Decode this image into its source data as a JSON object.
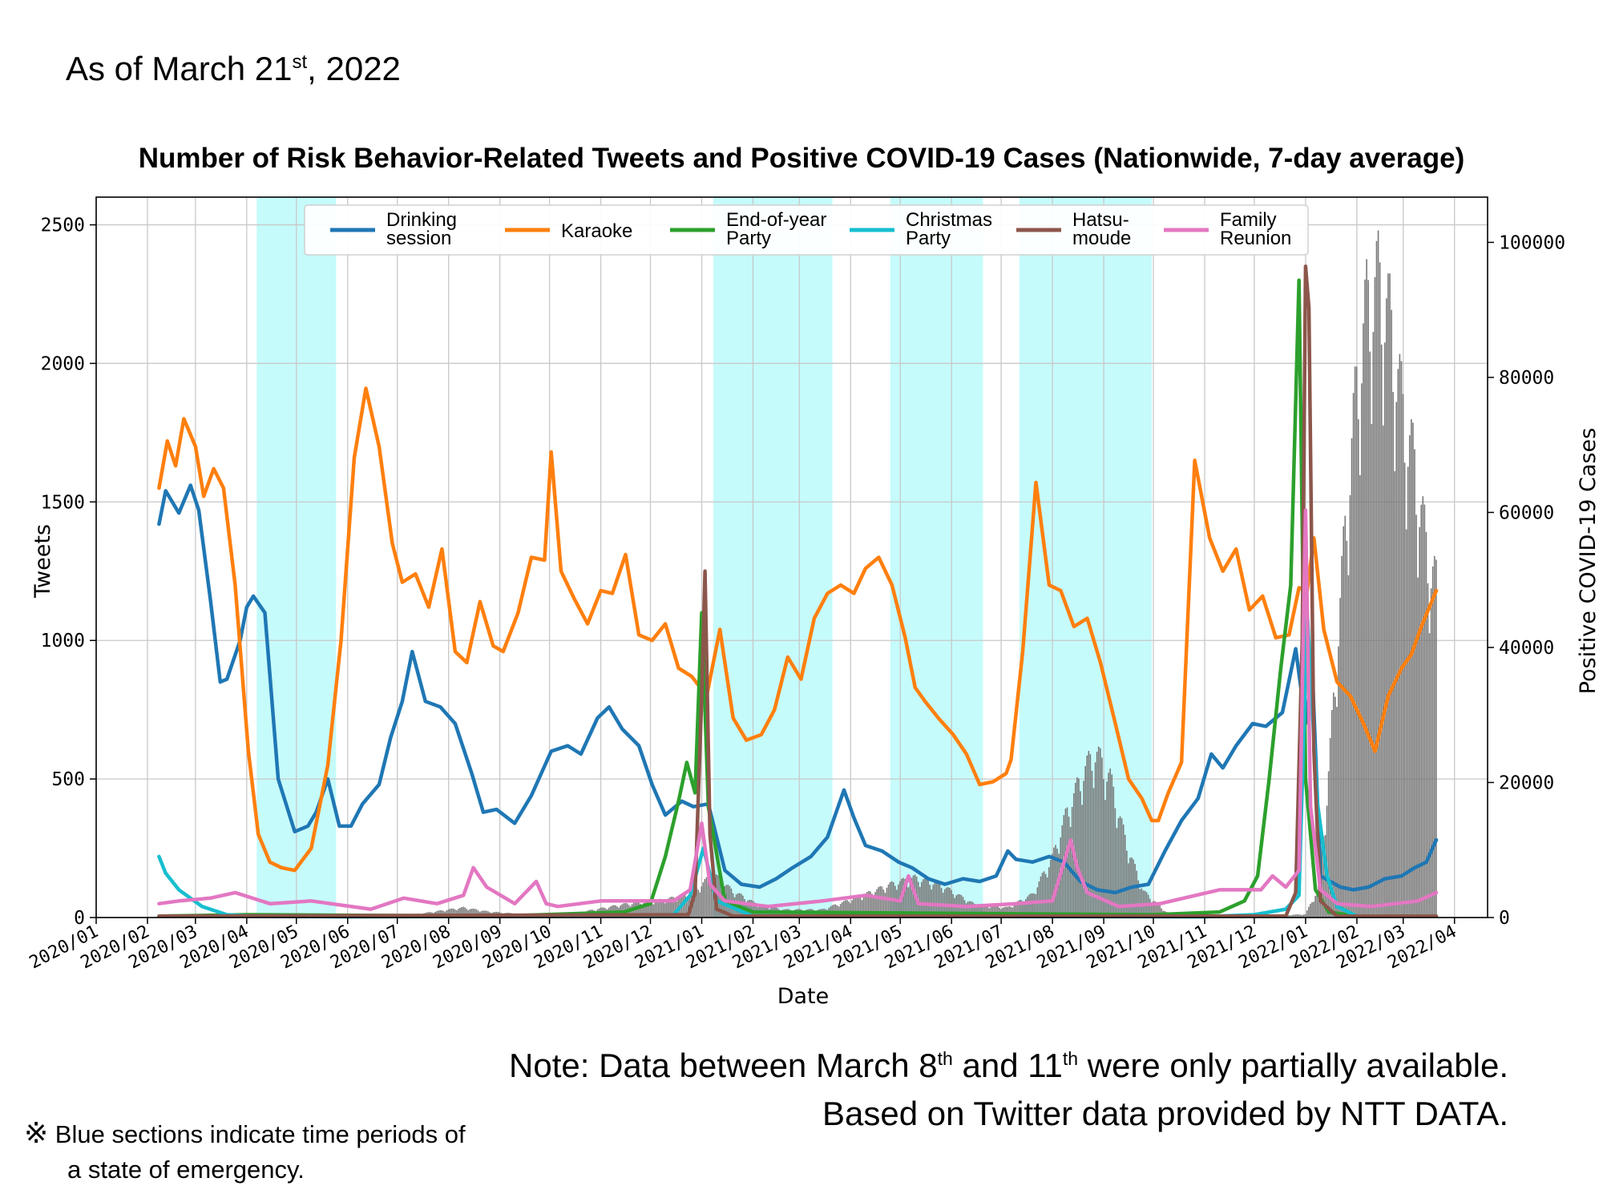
{
  "header": {
    "asof_prefix": "As of March 21",
    "asof_sup": "st",
    "asof_suffix": ", 2022"
  },
  "chart_data": {
    "type": "line",
    "title": "Number of Risk Behavior-Related Tweets and Positive COVID-19 Cases (Nationwide, 7-day average)",
    "xlabel": "Date",
    "ylabel": "Tweets",
    "ylabel_right": "Positive COVID-19 Cases",
    "ylim": [
      0,
      2600
    ],
    "ylim_right": [
      0,
      106700
    ],
    "x_range": [
      "2020-01-01",
      "2022-04-21"
    ],
    "grid": true,
    "legend_position": "top-center",
    "y_ticks": [
      0,
      500,
      1000,
      1500,
      2000,
      2500
    ],
    "y_tick_labels": [
      "0",
      "500",
      "1000",
      "1500",
      "2000",
      "2500"
    ],
    "y_right_ticks": [
      0,
      20000,
      40000,
      60000,
      80000,
      100000
    ],
    "y_right_tick_labels": [
      "0",
      "20000",
      "40000",
      "60000",
      "80000",
      "100000"
    ],
    "x_ticks": [
      "2020-01-01",
      "2020-02-01",
      "2020-03-01",
      "2020-04-01",
      "2020-05-01",
      "2020-06-01",
      "2020-07-01",
      "2020-08-01",
      "2020-09-01",
      "2020-10-01",
      "2020-11-01",
      "2020-12-01",
      "2021-01-01",
      "2021-02-01",
      "2021-03-01",
      "2021-04-01",
      "2021-05-01",
      "2021-06-01",
      "2021-07-01",
      "2021-08-01",
      "2021-09-01",
      "2021-10-01",
      "2021-11-01",
      "2021-12-01",
      "2022-01-01",
      "2022-02-01",
      "2022-03-01",
      "2022-04-01"
    ],
    "x_tick_labels": [
      "2020/01",
      "2020/02",
      "2020/03",
      "2020/04",
      "2020/05",
      "2020/06",
      "2020/07",
      "2020/08",
      "2020/09",
      "2020/10",
      "2020/11",
      "2020/12",
      "2021/01",
      "2021/02",
      "2021/03",
      "2021/04",
      "2021/05",
      "2021/06",
      "2021/07",
      "2021/08",
      "2021/09",
      "2021/10",
      "2021/11",
      "2021/12",
      "2022/01",
      "2022/02",
      "2022/03",
      "2022/04"
    ],
    "emergency_periods": [
      [
        "2020-04-07",
        "2020-05-25"
      ],
      [
        "2021-01-08",
        "2021-03-21"
      ],
      [
        "2021-04-25",
        "2021-06-20"
      ],
      [
        "2021-07-12",
        "2021-09-30"
      ]
    ],
    "series": [
      {
        "name": "Drinking session",
        "color": "#1f77b4",
        "x": [
          "2020-02-08",
          "2020-02-12",
          "2020-02-20",
          "2020-02-27",
          "2020-03-03",
          "2020-03-10",
          "2020-03-16",
          "2020-03-20",
          "2020-03-28",
          "2020-04-01",
          "2020-04-05",
          "2020-04-12",
          "2020-04-20",
          "2020-04-30",
          "2020-05-08",
          "2020-05-13",
          "2020-05-20",
          "2020-05-27",
          "2020-06-03",
          "2020-06-10",
          "2020-06-20",
          "2020-06-27",
          "2020-07-04",
          "2020-07-10",
          "2020-07-18",
          "2020-07-27",
          "2020-08-05",
          "2020-08-15",
          "2020-08-22",
          "2020-08-30",
          "2020-09-10",
          "2020-09-20",
          "2020-10-02",
          "2020-10-12",
          "2020-10-20",
          "2020-10-30",
          "2020-11-06",
          "2020-11-14",
          "2020-11-24",
          "2020-12-02",
          "2020-12-10",
          "2020-12-20",
          "2020-12-27",
          "2021-01-05",
          "2021-01-15",
          "2021-01-25",
          "2021-02-05",
          "2021-02-15",
          "2021-02-25",
          "2021-03-08",
          "2021-03-18",
          "2021-03-28",
          "2021-04-03",
          "2021-04-10",
          "2021-04-20",
          "2021-04-30",
          "2021-05-08",
          "2021-05-18",
          "2021-05-28",
          "2021-06-08",
          "2021-06-18",
          "2021-06-28",
          "2021-07-05",
          "2021-07-10",
          "2021-07-20",
          "2021-07-30",
          "2021-08-08",
          "2021-08-18",
          "2021-08-28",
          "2021-09-08",
          "2021-09-18",
          "2021-09-28",
          "2021-10-08",
          "2021-10-18",
          "2021-10-28",
          "2021-11-05",
          "2021-11-12",
          "2021-11-20",
          "2021-11-30",
          "2021-12-08",
          "2021-12-18",
          "2021-12-26",
          "2022-01-01",
          "2022-01-05",
          "2022-01-10",
          "2022-01-16",
          "2022-01-22",
          "2022-01-30",
          "2022-02-08",
          "2022-02-18",
          "2022-02-28",
          "2022-03-08",
          "2022-03-15",
          "2022-03-21"
        ],
        "values": [
          1420,
          1540,
          1460,
          1560,
          1470,
          1150,
          850,
          860,
          1000,
          1120,
          1160,
          1100,
          500,
          310,
          330,
          380,
          500,
          330,
          330,
          410,
          480,
          650,
          780,
          960,
          780,
          760,
          700,
          520,
          380,
          390,
          340,
          440,
          600,
          620,
          590,
          720,
          760,
          680,
          620,
          480,
          370,
          420,
          400,
          410,
          170,
          120,
          110,
          140,
          180,
          220,
          290,
          460,
          360,
          260,
          240,
          200,
          180,
          140,
          120,
          140,
          130,
          150,
          240,
          210,
          200,
          220,
          200,
          130,
          100,
          90,
          110,
          120,
          240,
          350,
          430,
          590,
          540,
          620,
          700,
          690,
          740,
          970,
          700,
          900,
          150,
          130,
          110,
          100,
          110,
          140,
          150,
          180,
          200,
          280
        ]
      },
      {
        "name": "Karaoke",
        "color": "#ff7f0e",
        "x": [
          "2020-02-08",
          "2020-02-13",
          "2020-02-18",
          "2020-02-23",
          "2020-03-01",
          "2020-03-06",
          "2020-03-12",
          "2020-03-18",
          "2020-03-25",
          "2020-04-02",
          "2020-04-08",
          "2020-04-15",
          "2020-04-22",
          "2020-04-30",
          "2020-05-10",
          "2020-05-20",
          "2020-05-28",
          "2020-06-05",
          "2020-06-12",
          "2020-06-20",
          "2020-06-28",
          "2020-07-04",
          "2020-07-12",
          "2020-07-20",
          "2020-07-28",
          "2020-08-05",
          "2020-08-12",
          "2020-08-20",
          "2020-08-28",
          "2020-09-03",
          "2020-09-12",
          "2020-09-20",
          "2020-09-28",
          "2020-10-02",
          "2020-10-08",
          "2020-10-16",
          "2020-10-24",
          "2020-11-01",
          "2020-11-08",
          "2020-11-16",
          "2020-11-24",
          "2020-12-02",
          "2020-12-10",
          "2020-12-18",
          "2020-12-26",
          "2021-01-04",
          "2021-01-12",
          "2021-01-20",
          "2021-01-28",
          "2021-02-06",
          "2021-02-14",
          "2021-02-22",
          "2021-03-02",
          "2021-03-10",
          "2021-03-18",
          "2021-03-26",
          "2021-04-03",
          "2021-04-10",
          "2021-04-18",
          "2021-04-26",
          "2021-05-04",
          "2021-05-10",
          "2021-05-16",
          "2021-05-24",
          "2021-06-02",
          "2021-06-10",
          "2021-06-18",
          "2021-06-26",
          "2021-07-04",
          "2021-07-07",
          "2021-07-14",
          "2021-07-22",
          "2021-07-30",
          "2021-08-06",
          "2021-08-14",
          "2021-08-22",
          "2021-08-30",
          "2021-09-08",
          "2021-09-16",
          "2021-09-24",
          "2021-09-30",
          "2021-10-04",
          "2021-10-10",
          "2021-10-18",
          "2021-10-26",
          "2021-11-04",
          "2021-11-12",
          "2021-11-20",
          "2021-11-28",
          "2021-12-06",
          "2021-12-14",
          "2021-12-22",
          "2021-12-28",
          "2022-01-02",
          "2022-01-06",
          "2022-01-12",
          "2022-01-20",
          "2022-01-28",
          "2022-02-05",
          "2022-02-12",
          "2022-02-20",
          "2022-02-28",
          "2022-03-06",
          "2022-03-12",
          "2022-03-21"
        ],
        "values": [
          1550,
          1720,
          1630,
          1800,
          1700,
          1520,
          1620,
          1550,
          1200,
          600,
          300,
          200,
          180,
          170,
          250,
          550,
          1000,
          1660,
          1910,
          1700,
          1350,
          1210,
          1240,
          1120,
          1330,
          960,
          920,
          1140,
          980,
          960,
          1100,
          1300,
          1290,
          1680,
          1250,
          1150,
          1060,
          1180,
          1170,
          1310,
          1020,
          1000,
          1060,
          900,
          870,
          800,
          1040,
          720,
          640,
          660,
          750,
          940,
          860,
          1080,
          1170,
          1200,
          1170,
          1260,
          1300,
          1200,
          1010,
          830,
          780,
          720,
          660,
          590,
          480,
          490,
          520,
          570,
          960,
          1570,
          1200,
          1180,
          1050,
          1080,
          920,
          700,
          500,
          430,
          350,
          350,
          450,
          560,
          1650,
          1370,
          1250,
          1330,
          1110,
          1160,
          1010,
          1020,
          1190,
          1180,
          1370,
          1040,
          850,
          800,
          700,
          600,
          800,
          900,
          950,
          1050,
          1180
        ]
      },
      {
        "name": "End-of-year Party",
        "color": "#2ca02c",
        "x": [
          "2020-02-08",
          "2020-04-01",
          "2020-09-01",
          "2020-11-15",
          "2020-12-01",
          "2020-12-10",
          "2020-12-18",
          "2020-12-23",
          "2020-12-28",
          "2021-01-01",
          "2021-01-05",
          "2021-01-15",
          "2021-02-01",
          "2021-10-01",
          "2021-11-10",
          "2021-11-25",
          "2021-12-03",
          "2021-12-10",
          "2021-12-17",
          "2021-12-23",
          "2021-12-28",
          "2022-01-01",
          "2022-01-07",
          "2022-01-15",
          "2022-02-01",
          "2022-03-21"
        ],
        "values": [
          5,
          10,
          5,
          20,
          50,
          220,
          420,
          560,
          450,
          1100,
          400,
          60,
          20,
          10,
          20,
          60,
          150,
          500,
          900,
          1200,
          2300,
          500,
          100,
          20,
          5,
          5
        ]
      },
      {
        "name": "Christmas Party",
        "color": "#17becf",
        "x": [
          "2020-02-08",
          "2020-02-12",
          "2020-02-20",
          "2020-03-05",
          "2020-03-20",
          "2020-04-05",
          "2020-06-01",
          "2020-11-15",
          "2020-12-15",
          "2020-12-25",
          "2021-01-02",
          "2021-01-10",
          "2021-02-01",
          "2021-11-01",
          "2021-12-01",
          "2021-12-20",
          "2021-12-28",
          "2022-01-02",
          "2022-01-08",
          "2022-01-14",
          "2022-01-20",
          "2022-02-01",
          "2022-03-21"
        ],
        "values": [
          220,
          160,
          100,
          40,
          10,
          5,
          3,
          5,
          10,
          80,
          250,
          60,
          5,
          3,
          10,
          30,
          80,
          1100,
          420,
          150,
          40,
          5,
          5
        ]
      },
      {
        "name": "Hatsumoude",
        "color": "#8c564b",
        "x": [
          "2020-02-08",
          "2020-12-24",
          "2020-12-28",
          "2021-01-01",
          "2021-01-03",
          "2021-01-06",
          "2021-01-10",
          "2021-01-20",
          "2021-12-20",
          "2021-12-26",
          "2021-12-30",
          "2022-01-01",
          "2022-01-03",
          "2022-01-06",
          "2022-01-10",
          "2022-01-20",
          "2022-03-21"
        ],
        "values": [
          5,
          10,
          90,
          800,
          1250,
          300,
          30,
          5,
          5,
          90,
          1000,
          2350,
          2200,
          600,
          60,
          5,
          5
        ]
      },
      {
        "name": "Family Reunion",
        "color": "#e377c2",
        "x": [
          "2020-02-08",
          "2020-02-20",
          "2020-03-10",
          "2020-03-25",
          "2020-04-15",
          "2020-05-10",
          "2020-06-15",
          "2020-07-05",
          "2020-07-25",
          "2020-08-10",
          "2020-08-16",
          "2020-08-24",
          "2020-09-10",
          "2020-09-23",
          "2020-09-29",
          "2020-10-06",
          "2020-11-01",
          "2020-12-15",
          "2020-12-25",
          "2021-01-01",
          "2021-01-06",
          "2021-01-15",
          "2021-02-10",
          "2021-03-15",
          "2021-04-10",
          "2021-05-01",
          "2021-05-06",
          "2021-05-12",
          "2021-06-10",
          "2021-07-10",
          "2021-08-01",
          "2021-08-12",
          "2021-08-16",
          "2021-08-22",
          "2021-09-10",
          "2021-10-05",
          "2021-11-10",
          "2021-12-05",
          "2021-12-12",
          "2021-12-20",
          "2021-12-28",
          "2022-01-01",
          "2022-01-04",
          "2022-01-10",
          "2022-01-20",
          "2022-02-10",
          "2022-03-10",
          "2022-03-21"
        ],
        "values": [
          50,
          60,
          70,
          90,
          50,
          60,
          30,
          70,
          50,
          80,
          180,
          110,
          50,
          130,
          50,
          40,
          60,
          60,
          100,
          340,
          120,
          60,
          40,
          60,
          80,
          60,
          150,
          50,
          40,
          50,
          60,
          280,
          180,
          90,
          40,
          50,
          100,
          100,
          150,
          110,
          170,
          1470,
          400,
          100,
          50,
          40,
          60,
          90
        ]
      }
    ],
    "cases_series": {
      "name": "Positive COVID-19 Cases",
      "color": "#777777",
      "x": [
        "2020-03-01",
        "2020-04-10",
        "2020-05-01",
        "2020-06-01",
        "2020-07-10",
        "2020-08-01",
        "2020-08-10",
        "2020-08-25",
        "2020-09-15",
        "2020-10-15",
        "2020-11-15",
        "2020-12-10",
        "2020-12-25",
        "2021-01-08",
        "2021-01-20",
        "2021-02-05",
        "2021-02-20",
        "2021-03-15",
        "2021-04-10",
        "2021-04-25",
        "2021-05-10",
        "2021-05-25",
        "2021-06-15",
        "2021-07-05",
        "2021-07-20",
        "2021-08-01",
        "2021-08-10",
        "2021-08-20",
        "2021-08-27",
        "2021-09-05",
        "2021-09-15",
        "2021-09-25",
        "2021-10-10",
        "2021-11-01",
        "2021-12-01",
        "2022-01-01",
        "2022-01-08",
        "2022-01-14",
        "2022-01-20",
        "2022-01-26",
        "2022-02-01",
        "2022-02-07",
        "2022-02-14",
        "2022-02-21",
        "2022-03-01",
        "2022-03-08",
        "2022-03-15",
        "2022-03-21"
      ],
      "values": [
        50,
        500,
        200,
        50,
        400,
        1200,
        1500,
        900,
        500,
        600,
        2000,
        2700,
        3500,
        6500,
        4000,
        1800,
        1200,
        1200,
        3500,
        5000,
        6000,
        5000,
        2000,
        1500,
        3500,
        9000,
        16000,
        22000,
        25000,
        21000,
        11000,
        4000,
        600,
        150,
        150,
        500,
        4000,
        18000,
        40000,
        62000,
        80000,
        92000,
        96000,
        90000,
        76000,
        68000,
        56000,
        50000
      ]
    }
  },
  "notes": {
    "line1_a": "Note: Data between March 8",
    "line1_sup_a": "th",
    "line1_b": " and 11",
    "line1_sup_b": "th",
    "line1_c": " were only partially available.",
    "line2": "Based on Twitter data provided by NTT DATA."
  },
  "footnote": {
    "mark": "※",
    "line1": " Blue sections indicate time periods of",
    "line2": "a state of emergency."
  }
}
